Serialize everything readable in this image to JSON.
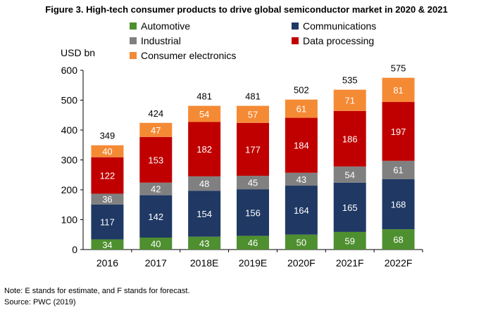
{
  "title": "Figure 3. High-tech consumer products to drive global semiconductor market in 2020 & 2021",
  "unit_label": "USD bn",
  "notes": {
    "note": "Note: E stands for estimate, and F stands for forecast.",
    "source": "Source: PWC (2019)"
  },
  "legend": [
    {
      "label": "Automotive",
      "color": "#4e8f2f"
    },
    {
      "label": "Communications",
      "color": "#1f3864"
    },
    {
      "label": "Industrial",
      "color": "#808080"
    },
    {
      "label": "Data processing",
      "color": "#c00000"
    },
    {
      "label": "Consumer electronics",
      "color": "#f58a35"
    }
  ],
  "chart_data": {
    "type": "bar",
    "stacked": true,
    "categories": [
      "2016",
      "2017",
      "2018E",
      "2019E",
      "2020F",
      "2021F",
      "2022F"
    ],
    "ylim": [
      0,
      600
    ],
    "yticks": [
      0,
      100,
      200,
      300,
      400,
      500,
      600
    ],
    "ylabel": "USD bn",
    "series": [
      {
        "name": "Automotive",
        "color": "#4e8f2f",
        "values": [
          34,
          40,
          43,
          46,
          50,
          59,
          68
        ]
      },
      {
        "name": "Communications",
        "color": "#1f3864",
        "values": [
          117,
          142,
          154,
          156,
          164,
          165,
          168
        ]
      },
      {
        "name": "Industrial",
        "color": "#808080",
        "values": [
          36,
          42,
          48,
          45,
          43,
          54,
          61
        ]
      },
      {
        "name": "Data processing",
        "color": "#c00000",
        "values": [
          122,
          153,
          182,
          177,
          184,
          186,
          197
        ]
      },
      {
        "name": "Consumer electronics",
        "color": "#f58a35",
        "values": [
          40,
          47,
          54,
          57,
          61,
          71,
          81
        ]
      }
    ],
    "totals": [
      349,
      424,
      481,
      481,
      502,
      535,
      575
    ],
    "legend_position": "top"
  }
}
